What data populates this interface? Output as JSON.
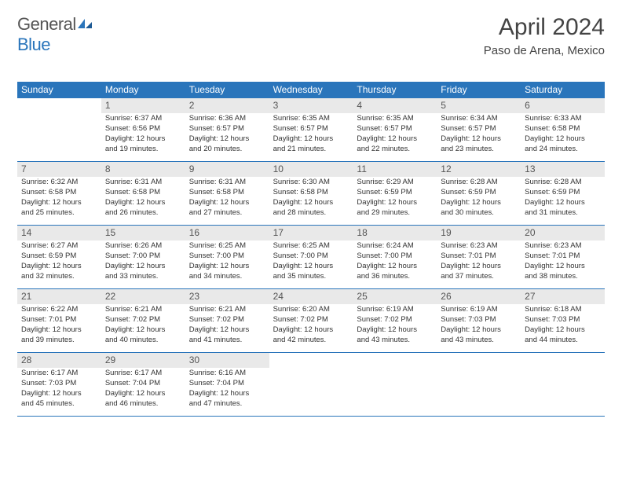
{
  "header": {
    "logo_general": "General",
    "logo_blue": "Blue",
    "month_title": "April 2024",
    "location": "Paso de Arena, Mexico"
  },
  "colors": {
    "accent": "#2a75bb",
    "daynum_bg": "#e9e9e9",
    "text": "#333333",
    "muted": "#555555",
    "background": "#ffffff"
  },
  "typography": {
    "title_fontsize": 30,
    "location_fontsize": 15,
    "dow_fontsize": 12,
    "daynum_fontsize": 12,
    "body_fontsize": 9.5
  },
  "dow": [
    "Sunday",
    "Monday",
    "Tuesday",
    "Wednesday",
    "Thursday",
    "Friday",
    "Saturday"
  ],
  "days": [
    {
      "n": "1",
      "sr": "Sunrise: 6:37 AM",
      "ss": "Sunset: 6:56 PM",
      "dl1": "Daylight: 12 hours",
      "dl2": "and 19 minutes."
    },
    {
      "n": "2",
      "sr": "Sunrise: 6:36 AM",
      "ss": "Sunset: 6:57 PM",
      "dl1": "Daylight: 12 hours",
      "dl2": "and 20 minutes."
    },
    {
      "n": "3",
      "sr": "Sunrise: 6:35 AM",
      "ss": "Sunset: 6:57 PM",
      "dl1": "Daylight: 12 hours",
      "dl2": "and 21 minutes."
    },
    {
      "n": "4",
      "sr": "Sunrise: 6:35 AM",
      "ss": "Sunset: 6:57 PM",
      "dl1": "Daylight: 12 hours",
      "dl2": "and 22 minutes."
    },
    {
      "n": "5",
      "sr": "Sunrise: 6:34 AM",
      "ss": "Sunset: 6:57 PM",
      "dl1": "Daylight: 12 hours",
      "dl2": "and 23 minutes."
    },
    {
      "n": "6",
      "sr": "Sunrise: 6:33 AM",
      "ss": "Sunset: 6:58 PM",
      "dl1": "Daylight: 12 hours",
      "dl2": "and 24 minutes."
    },
    {
      "n": "7",
      "sr": "Sunrise: 6:32 AM",
      "ss": "Sunset: 6:58 PM",
      "dl1": "Daylight: 12 hours",
      "dl2": "and 25 minutes."
    },
    {
      "n": "8",
      "sr": "Sunrise: 6:31 AM",
      "ss": "Sunset: 6:58 PM",
      "dl1": "Daylight: 12 hours",
      "dl2": "and 26 minutes."
    },
    {
      "n": "9",
      "sr": "Sunrise: 6:31 AM",
      "ss": "Sunset: 6:58 PM",
      "dl1": "Daylight: 12 hours",
      "dl2": "and 27 minutes."
    },
    {
      "n": "10",
      "sr": "Sunrise: 6:30 AM",
      "ss": "Sunset: 6:58 PM",
      "dl1": "Daylight: 12 hours",
      "dl2": "and 28 minutes."
    },
    {
      "n": "11",
      "sr": "Sunrise: 6:29 AM",
      "ss": "Sunset: 6:59 PM",
      "dl1": "Daylight: 12 hours",
      "dl2": "and 29 minutes."
    },
    {
      "n": "12",
      "sr": "Sunrise: 6:28 AM",
      "ss": "Sunset: 6:59 PM",
      "dl1": "Daylight: 12 hours",
      "dl2": "and 30 minutes."
    },
    {
      "n": "13",
      "sr": "Sunrise: 6:28 AM",
      "ss": "Sunset: 6:59 PM",
      "dl1": "Daylight: 12 hours",
      "dl2": "and 31 minutes."
    },
    {
      "n": "14",
      "sr": "Sunrise: 6:27 AM",
      "ss": "Sunset: 6:59 PM",
      "dl1": "Daylight: 12 hours",
      "dl2": "and 32 minutes."
    },
    {
      "n": "15",
      "sr": "Sunrise: 6:26 AM",
      "ss": "Sunset: 7:00 PM",
      "dl1": "Daylight: 12 hours",
      "dl2": "and 33 minutes."
    },
    {
      "n": "16",
      "sr": "Sunrise: 6:25 AM",
      "ss": "Sunset: 7:00 PM",
      "dl1": "Daylight: 12 hours",
      "dl2": "and 34 minutes."
    },
    {
      "n": "17",
      "sr": "Sunrise: 6:25 AM",
      "ss": "Sunset: 7:00 PM",
      "dl1": "Daylight: 12 hours",
      "dl2": "and 35 minutes."
    },
    {
      "n": "18",
      "sr": "Sunrise: 6:24 AM",
      "ss": "Sunset: 7:00 PM",
      "dl1": "Daylight: 12 hours",
      "dl2": "and 36 minutes."
    },
    {
      "n": "19",
      "sr": "Sunrise: 6:23 AM",
      "ss": "Sunset: 7:01 PM",
      "dl1": "Daylight: 12 hours",
      "dl2": "and 37 minutes."
    },
    {
      "n": "20",
      "sr": "Sunrise: 6:23 AM",
      "ss": "Sunset: 7:01 PM",
      "dl1": "Daylight: 12 hours",
      "dl2": "and 38 minutes."
    },
    {
      "n": "21",
      "sr": "Sunrise: 6:22 AM",
      "ss": "Sunset: 7:01 PM",
      "dl1": "Daylight: 12 hours",
      "dl2": "and 39 minutes."
    },
    {
      "n": "22",
      "sr": "Sunrise: 6:21 AM",
      "ss": "Sunset: 7:02 PM",
      "dl1": "Daylight: 12 hours",
      "dl2": "and 40 minutes."
    },
    {
      "n": "23",
      "sr": "Sunrise: 6:21 AM",
      "ss": "Sunset: 7:02 PM",
      "dl1": "Daylight: 12 hours",
      "dl2": "and 41 minutes."
    },
    {
      "n": "24",
      "sr": "Sunrise: 6:20 AM",
      "ss": "Sunset: 7:02 PM",
      "dl1": "Daylight: 12 hours",
      "dl2": "and 42 minutes."
    },
    {
      "n": "25",
      "sr": "Sunrise: 6:19 AM",
      "ss": "Sunset: 7:02 PM",
      "dl1": "Daylight: 12 hours",
      "dl2": "and 43 minutes."
    },
    {
      "n": "26",
      "sr": "Sunrise: 6:19 AM",
      "ss": "Sunset: 7:03 PM",
      "dl1": "Daylight: 12 hours",
      "dl2": "and 43 minutes."
    },
    {
      "n": "27",
      "sr": "Sunrise: 6:18 AM",
      "ss": "Sunset: 7:03 PM",
      "dl1": "Daylight: 12 hours",
      "dl2": "and 44 minutes."
    },
    {
      "n": "28",
      "sr": "Sunrise: 6:17 AM",
      "ss": "Sunset: 7:03 PM",
      "dl1": "Daylight: 12 hours",
      "dl2": "and 45 minutes."
    },
    {
      "n": "29",
      "sr": "Sunrise: 6:17 AM",
      "ss": "Sunset: 7:04 PM",
      "dl1": "Daylight: 12 hours",
      "dl2": "and 46 minutes."
    },
    {
      "n": "30",
      "sr": "Sunrise: 6:16 AM",
      "ss": "Sunset: 7:04 PM",
      "dl1": "Daylight: 12 hours",
      "dl2": "and 47 minutes."
    }
  ],
  "layout": {
    "first_weekday_offset": 1,
    "weeks": 5,
    "cols": 7
  }
}
